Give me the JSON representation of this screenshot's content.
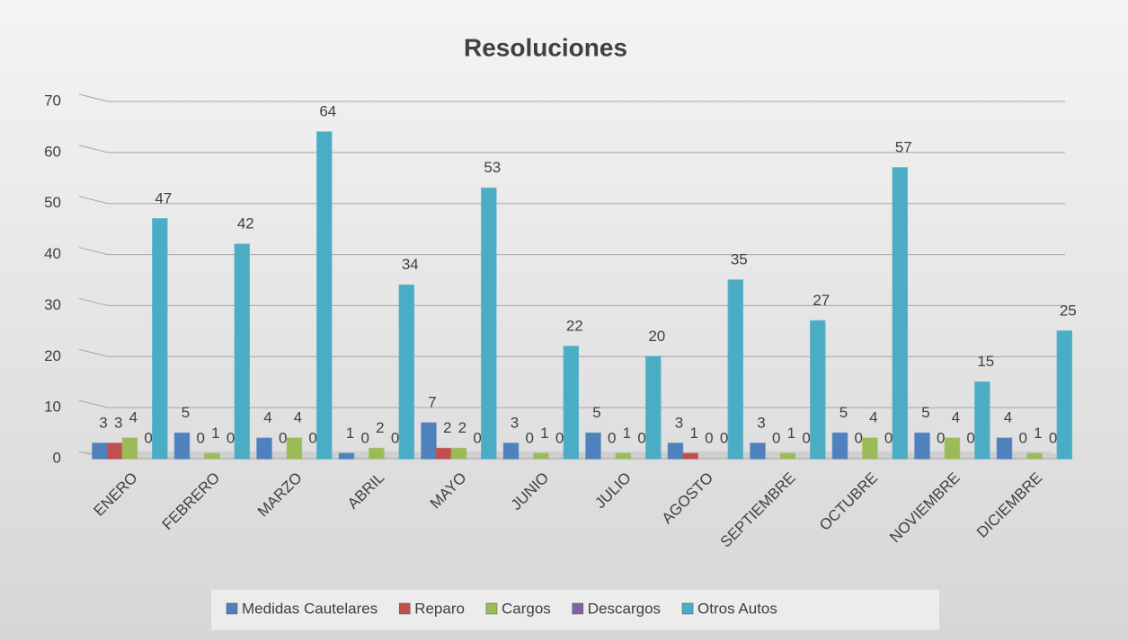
{
  "chart_data": {
    "type": "bar",
    "title": "Resoluciones",
    "categories": [
      "ENERO",
      "FEBRERO",
      "MARZO",
      "ABRIL",
      "MAYO",
      "JUNIO",
      "JULIO",
      "AGOSTO",
      "SEPTIEMBRE",
      "OCTUBRE",
      "NOVIEMBRE",
      "DICIEMBRE"
    ],
    "series": [
      {
        "name": "Medidas Cautelares",
        "color": "#4f81bd",
        "values": [
          3,
          5,
          4,
          1,
          7,
          3,
          5,
          3,
          3,
          5,
          5,
          4
        ]
      },
      {
        "name": "Reparo",
        "color": "#c0504d",
        "values": [
          3,
          0,
          0,
          0,
          2,
          0,
          0,
          1,
          0,
          0,
          0,
          0
        ]
      },
      {
        "name": "Cargos",
        "color": "#9bbb59",
        "values": [
          4,
          1,
          4,
          2,
          2,
          1,
          1,
          0,
          1,
          4,
          4,
          1
        ]
      },
      {
        "name": "Descargos",
        "color": "#8064a2",
        "values": [
          0,
          0,
          0,
          0,
          0,
          0,
          0,
          0,
          0,
          0,
          0,
          0
        ]
      },
      {
        "name": "Otros Autos",
        "color": "#4bacc6",
        "values": [
          47,
          42,
          64,
          34,
          53,
          22,
          20,
          35,
          27,
          57,
          15,
          25
        ]
      }
    ],
    "ylim": [
      0,
      70
    ],
    "yticks": [
      0,
      10,
      20,
      30,
      40,
      50,
      60,
      70
    ],
    "grid": true,
    "legend": "bottom"
  }
}
